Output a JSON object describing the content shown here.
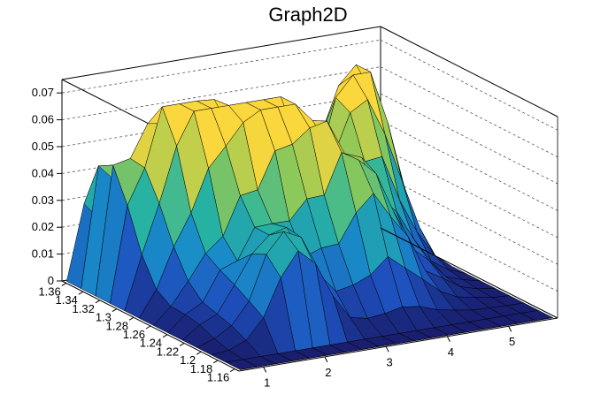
{
  "title": "Graph2D",
  "chart_data": {
    "type": "surface",
    "title": "Graph2D",
    "colormap": "viridis-like (navy → blue → teal → green → yellow)",
    "grid": true,
    "x": {
      "range": [
        0.6,
        5.8
      ],
      "ticks": [
        "1",
        "2",
        "3",
        "4",
        "5"
      ]
    },
    "y": {
      "range": [
        1.155,
        1.365
      ],
      "ticks": [
        "1.16",
        "1.18",
        "1.2",
        "1.22",
        "1.24",
        "1.26",
        "1.28",
        "1.3",
        "1.32",
        "1.34",
        "1.36"
      ]
    },
    "z": {
      "range": [
        0,
        0.075
      ],
      "ticks": [
        "0",
        "0.01",
        "0.02",
        "0.03",
        "0.04",
        "0.05",
        "0.06",
        "0.07"
      ]
    },
    "approx_surface": {
      "nx": 18,
      "ny": 12,
      "peaks": [
        {
          "x": 1.7,
          "y": 1.31,
          "z": 0.059,
          "note": "highest yellow peak, back-left"
        },
        {
          "x": 5.0,
          "y": 1.33,
          "z": 0.057,
          "note": "tall thin peak, back-right"
        },
        {
          "x": 2.5,
          "y": 1.29,
          "z": 0.045
        },
        {
          "x": 3.2,
          "y": 1.28,
          "z": 0.044
        },
        {
          "x": 0.8,
          "y": 1.34,
          "z": 0.043
        },
        {
          "x": 4.5,
          "y": 1.3,
          "z": 0.04
        },
        {
          "x": 2.1,
          "y": 1.2,
          "z": 0.034
        },
        {
          "x": 3.8,
          "y": 1.24,
          "z": 0.03
        }
      ],
      "zero_region": "edges of the grid (low x, high x and low y) drop to 0"
    }
  }
}
